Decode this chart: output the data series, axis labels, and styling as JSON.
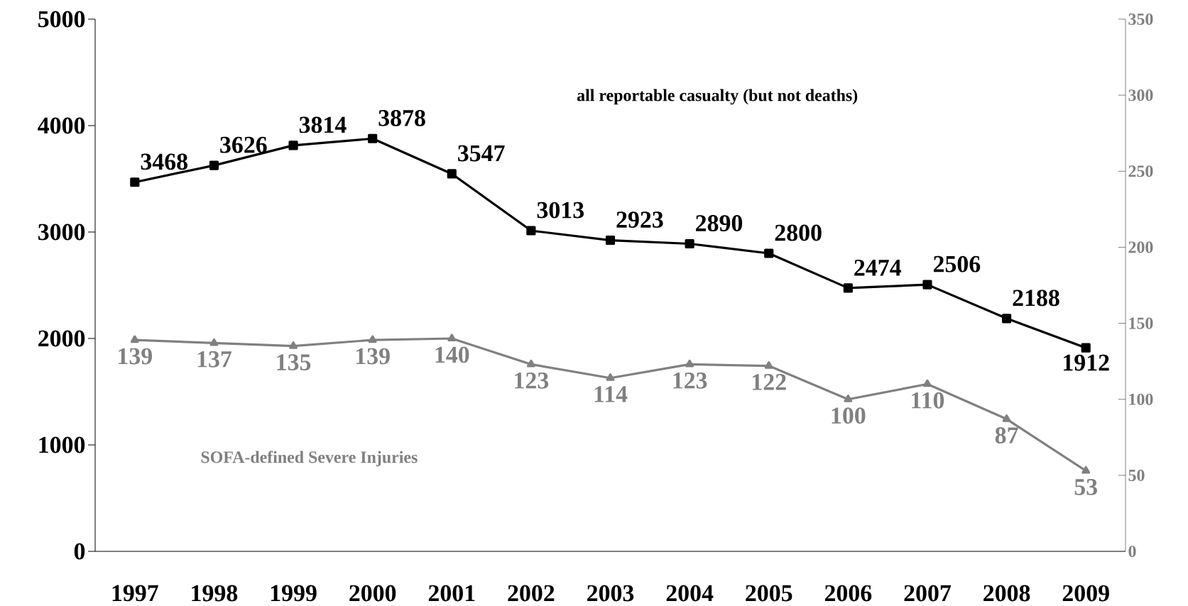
{
  "chart_data": {
    "type": "line",
    "categories": [
      "1997",
      "1998",
      "1999",
      "2000",
      "2001",
      "2002",
      "2003",
      "2004",
      "2005",
      "2006",
      "2007",
      "2008",
      "2009"
    ],
    "series": [
      {
        "name": "all reportable casualty (but not deaths)",
        "color": "#000000",
        "marker": "square",
        "values": [
          3468,
          3626,
          3814,
          3878,
          3547,
          3013,
          2923,
          2890,
          2800,
          2474,
          2506,
          2188,
          1912
        ]
      },
      {
        "name": "SOFA-defined Severe Injuries",
        "color": "#808080",
        "marker": "triangle",
        "axis": "y2",
        "values": [
          139,
          137,
          135,
          139,
          140,
          123,
          114,
          123,
          122,
          100,
          110,
          87,
          53
        ]
      }
    ],
    "ylim": [
      0,
      5000
    ],
    "yticks": [
      0,
      1000,
      2000,
      3000,
      4000,
      5000
    ],
    "y2lim": [
      0,
      350
    ],
    "y2ticks": [
      0,
      50,
      100,
      150,
      200,
      250,
      300,
      350
    ],
    "data_labels": true,
    "grid": false,
    "line_style": "solid"
  }
}
